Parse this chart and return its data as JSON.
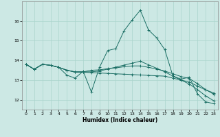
{
  "xlabel": "Humidex (Indice chaleur)",
  "background_color": "#cce8e4",
  "grid_color": "#aad4cc",
  "line_color": "#1a6e64",
  "xlim": [
    -0.5,
    23.5
  ],
  "ylim": [
    11.5,
    17.0
  ],
  "yticks": [
    12,
    13,
    14,
    15,
    16
  ],
  "xticks": [
    0,
    1,
    2,
    3,
    4,
    5,
    6,
    7,
    8,
    9,
    10,
    11,
    12,
    13,
    14,
    15,
    16,
    17,
    18,
    19,
    20,
    21,
    22,
    23
  ],
  "lines": [
    [
      13.8,
      13.55,
      13.8,
      13.75,
      13.65,
      13.25,
      13.1,
      13.45,
      12.4,
      13.65,
      14.5,
      14.6,
      15.5,
      16.05,
      16.55,
      15.55,
      15.15,
      14.55,
      13.2,
      13.05,
      13.15,
      12.3,
      11.9,
      11.8
    ],
    [
      13.8,
      13.55,
      13.8,
      13.75,
      13.65,
      13.5,
      13.4,
      13.4,
      13.38,
      13.36,
      13.34,
      13.32,
      13.3,
      13.28,
      13.26,
      13.24,
      13.22,
      13.2,
      13.1,
      13.0,
      12.9,
      12.7,
      12.5,
      12.35
    ],
    [
      13.8,
      13.55,
      13.8,
      13.75,
      13.65,
      13.5,
      13.42,
      13.42,
      13.5,
      13.52,
      13.58,
      13.62,
      13.68,
      13.72,
      13.72,
      13.65,
      13.56,
      13.46,
      13.32,
      13.18,
      13.08,
      12.82,
      12.52,
      12.28
    ],
    [
      13.8,
      13.55,
      13.8,
      13.75,
      13.65,
      13.5,
      13.42,
      13.42,
      13.42,
      13.46,
      13.56,
      13.66,
      13.76,
      13.86,
      13.96,
      13.78,
      13.6,
      13.42,
      13.2,
      13.0,
      12.8,
      12.52,
      12.2,
      11.95
    ]
  ]
}
